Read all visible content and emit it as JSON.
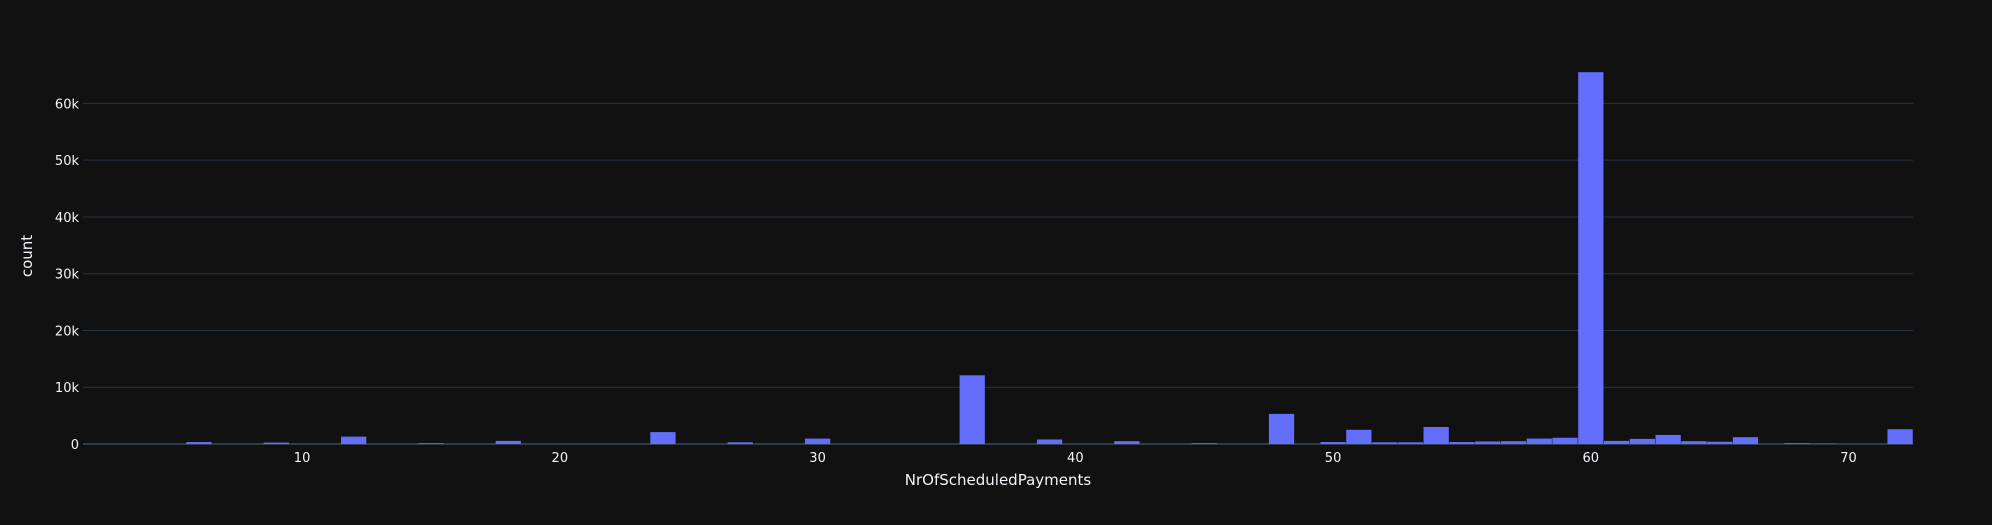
{
  "chart_data": {
    "type": "bar",
    "xlabel": "NrOfScheduledPayments",
    "ylabel": "count",
    "xlim": [
      1.5,
      72.5
    ],
    "ylim": [
      0,
      68000
    ],
    "x_ticks": [
      10,
      20,
      30,
      40,
      50,
      60,
      70
    ],
    "x_tick_labels": [
      "10",
      "20",
      "30",
      "40",
      "50",
      "60",
      "70"
    ],
    "y_ticks": [
      0,
      10000,
      20000,
      30000,
      40000,
      50000,
      60000
    ],
    "y_tick_labels": [
      "0",
      "10k",
      "20k",
      "30k",
      "40k",
      "50k",
      "60k"
    ],
    "grid": true,
    "bar_color": "#636efa",
    "background": "#111111",
    "x": [
      6,
      9,
      12,
      15,
      18,
      24,
      27,
      30,
      36,
      39,
      42,
      45,
      48,
      50,
      51,
      52,
      53,
      54,
      55,
      56,
      57,
      58,
      59,
      60,
      61,
      62,
      63,
      64,
      65,
      66,
      68,
      69,
      72
    ],
    "values": [
      350,
      250,
      1300,
      150,
      550,
      2100,
      300,
      950,
      12100,
      800,
      500,
      150,
      5300,
      350,
      2500,
      300,
      300,
      3000,
      350,
      450,
      500,
      950,
      1100,
      65500,
      550,
      900,
      1600,
      500,
      400,
      1200,
      150,
      100,
      2600
    ]
  }
}
